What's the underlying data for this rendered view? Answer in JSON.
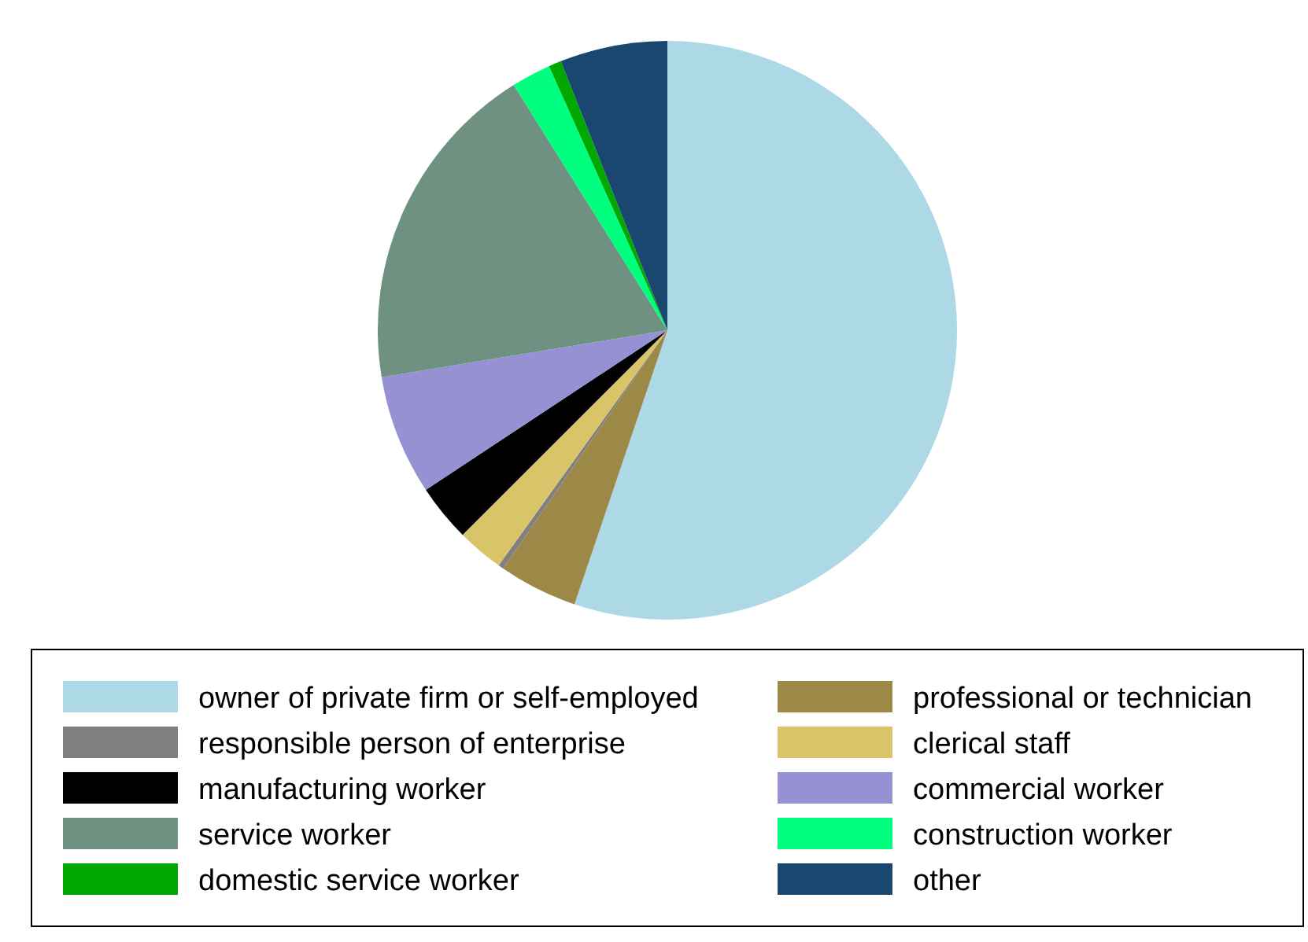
{
  "chart_data": {
    "type": "pie",
    "categories": [
      "owner of private firm or self-employed",
      "professional or technician",
      "responsible person of enterprise",
      "clerical staff",
      "manufacturing worker",
      "commercial worker",
      "service worker",
      "construction worker",
      "domestic service worker",
      "other"
    ],
    "values": [
      55.2,
      4.4,
      0.3,
      2.6,
      3.2,
      6.7,
      18.7,
      2.2,
      0.7,
      6.0
    ],
    "colors": [
      "#add8e6",
      "#9c8847",
      "#808080",
      "#d9c46a",
      "#000000",
      "#9591d2",
      "#6f9181",
      "#00ff7f",
      "#00a800",
      "#1a476f"
    ],
    "legend": "bottom"
  }
}
